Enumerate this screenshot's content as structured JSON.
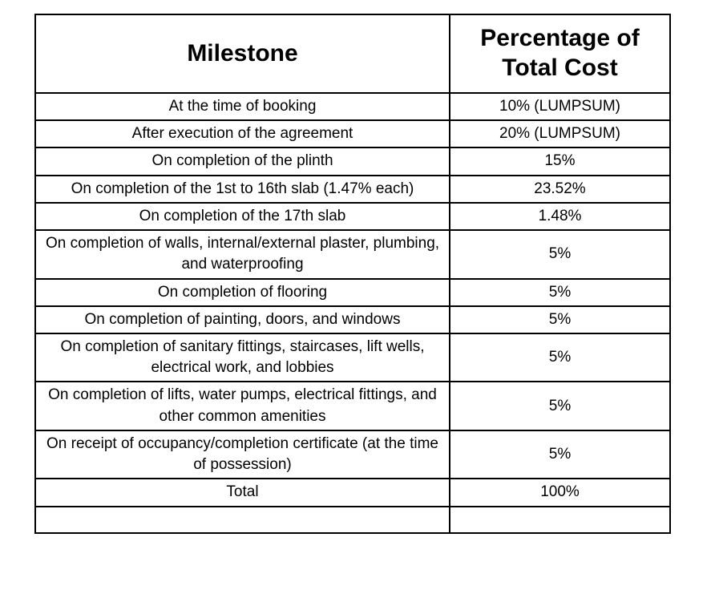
{
  "table": {
    "title": "payment-schedule-table",
    "headers": {
      "milestone": "Milestone",
      "percentage": "Percentage of Total Cost"
    },
    "rows": [
      {
        "milestone": "At the time of booking",
        "percentage": "10% (LUMPSUM)"
      },
      {
        "milestone": "After execution of the agreement",
        "percentage": "20% (LUMPSUM)"
      },
      {
        "milestone": "On completion of the plinth",
        "percentage": "15%"
      },
      {
        "milestone": "On completion of the 1st to 16th slab (1.47% each)",
        "percentage": "23.52%"
      },
      {
        "milestone": "On completion of the 17th slab",
        "percentage": "1.48%"
      },
      {
        "milestone": "On completion of walls, internal/external plaster, plumbing, and waterproofing",
        "percentage": "5%"
      },
      {
        "milestone": "On completion of flooring",
        "percentage": "5%"
      },
      {
        "milestone": "On completion of painting, doors, and windows",
        "percentage": "5%"
      },
      {
        "milestone": "On completion of sanitary fittings, staircases, lift wells, electrical work, and lobbies",
        "percentage": "5%"
      },
      {
        "milestone": "On completion of lifts, water pumps, electrical fittings, and other common amenities",
        "percentage": "5%"
      },
      {
        "milestone": "On receipt of occupancy/completion certificate (at the time of possession)",
        "percentage": "5%"
      },
      {
        "milestone": "Total",
        "percentage": "100%"
      },
      {
        "milestone": "",
        "percentage": ""
      }
    ],
    "colors": {
      "border": "#000000",
      "background": "#ffffff",
      "text": "#000000"
    }
  }
}
